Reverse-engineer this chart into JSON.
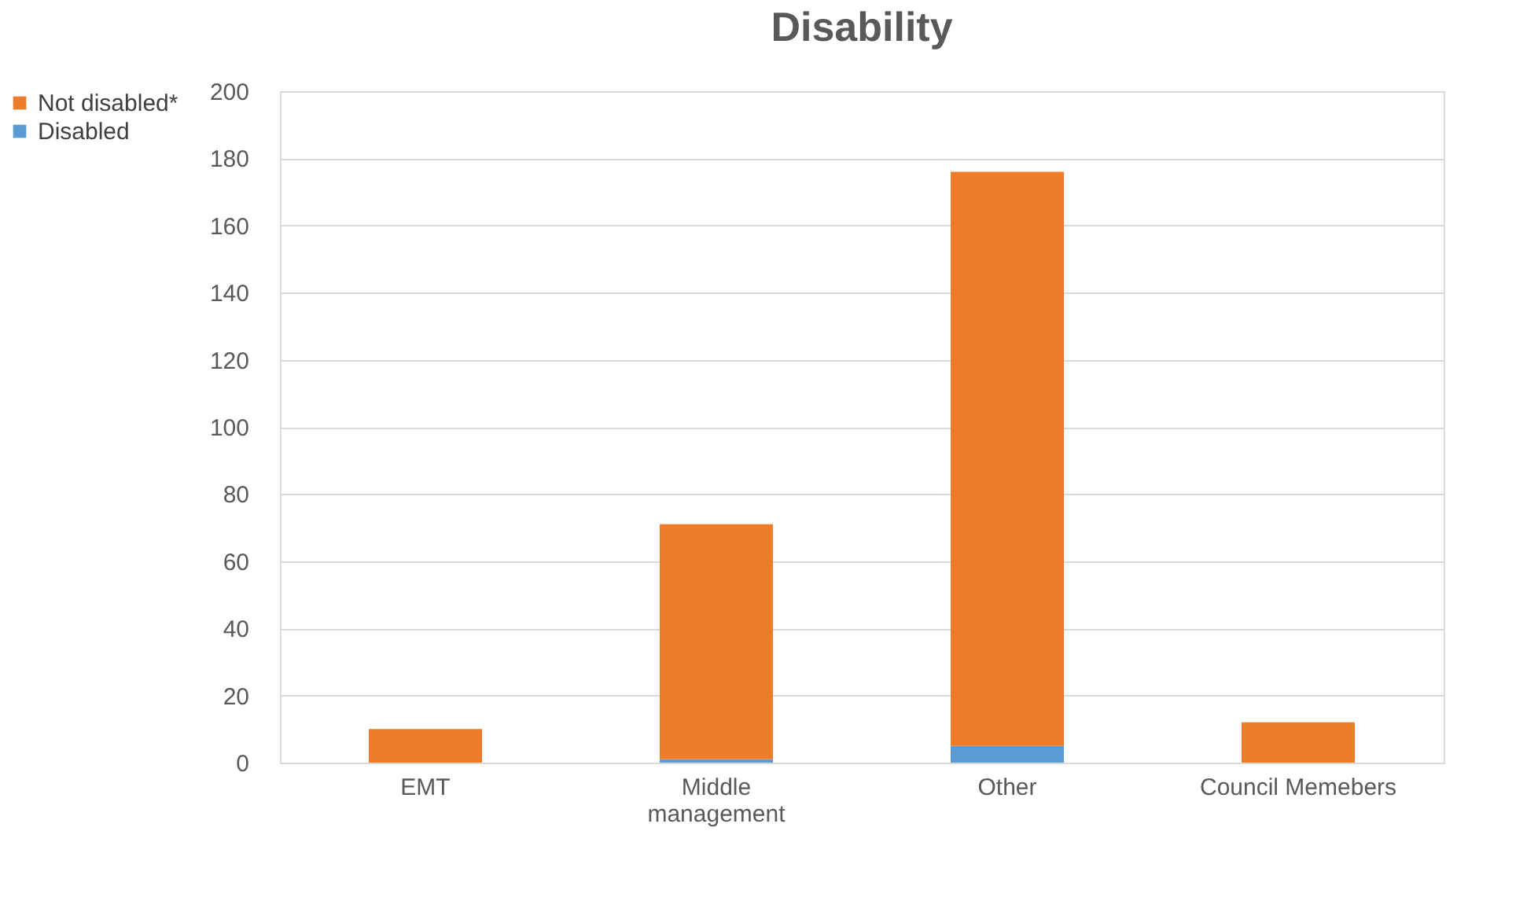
{
  "chart_data": {
    "type": "bar",
    "title": "Disability",
    "categories": [
      "EMT",
      "Middle management",
      "Other",
      "Council Memebers"
    ],
    "series": [
      {
        "name": "Disabled",
        "color": "#5b9bd5",
        "values": [
          0,
          1,
          5,
          0
        ]
      },
      {
        "name": "Not disabled*",
        "color": "#ee7d2b",
        "values": [
          10,
          70,
          171,
          12
        ]
      }
    ],
    "stacked": true,
    "ylim": [
      0,
      200
    ],
    "yticks": [
      0,
      20,
      40,
      60,
      80,
      100,
      120,
      140,
      160,
      180,
      200
    ],
    "grid": "y",
    "legend": "left"
  }
}
